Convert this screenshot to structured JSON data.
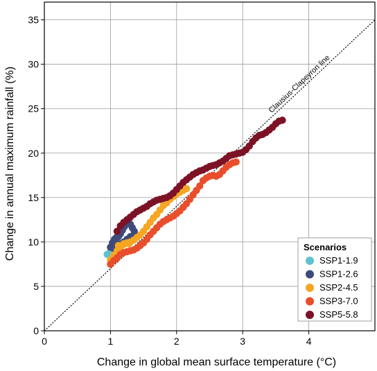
{
  "chart_data": {
    "type": "scatter",
    "xlabel": "Change in global mean surface temperature (°C)",
    "ylabel": "Change in annual maximum rainfall (%)",
    "xlim": [
      0,
      5
    ],
    "ylim": [
      0,
      37
    ],
    "xticks": [
      0,
      1,
      2,
      3,
      4
    ],
    "yticks": [
      0,
      5,
      10,
      15,
      20,
      25,
      30,
      35
    ],
    "grid": true,
    "legend_title": "Scenarios",
    "legend_position": "bottom-right",
    "reference_line": {
      "label": "Clausius-Clapeyron line",
      "x": [
        0,
        5
      ],
      "y": [
        0,
        35
      ]
    },
    "series": [
      {
        "name": "SSP1-1.9",
        "color": "#5fc3cf",
        "x": [
          0.95,
          1.0,
          1.03,
          1.06,
          1.09
        ],
        "y": [
          8.6,
          8.9,
          9.2,
          9.1,
          9.4
        ]
      },
      {
        "name": "SSP1-2.6",
        "color": "#3e4a7a",
        "x": [
          1.0,
          1.03,
          1.06,
          1.09,
          1.12,
          1.15,
          1.18,
          1.21,
          1.24,
          1.27,
          1.3,
          1.33,
          1.36,
          1.38,
          1.3,
          1.25,
          1.2,
          1.14,
          1.08,
          1.04
        ],
        "y": [
          9.4,
          9.9,
          10.3,
          10.5,
          10.6,
          10.9,
          11.3,
          11.7,
          12.0,
          12.3,
          12.0,
          11.6,
          11.2,
          10.8,
          10.6,
          10.3,
          10.0,
          9.8,
          9.6,
          9.3
        ]
      },
      {
        "name": "SSP2-4.5",
        "color": "#f5a623",
        "x": [
          1.0,
          1.05,
          1.1,
          1.15,
          1.2,
          1.25,
          1.3,
          1.35,
          1.4,
          1.45,
          1.5,
          1.55,
          1.6,
          1.65,
          1.7,
          1.75,
          1.8,
          1.85,
          1.9,
          1.95,
          2.0,
          2.05,
          2.1,
          2.15,
          1.12,
          1.2,
          1.28
        ],
        "y": [
          8.0,
          8.5,
          9.0,
          9.4,
          9.7,
          9.9,
          10.0,
          10.2,
          10.5,
          10.8,
          11.2,
          11.7,
          12.2,
          12.7,
          13.1,
          13.6,
          14.1,
          14.4,
          14.8,
          15.1,
          15.4,
          15.6,
          15.8,
          16.0,
          9.6,
          9.8,
          9.8
        ]
      },
      {
        "name": "SSP3-7.0",
        "color": "#e94e2c",
        "x": [
          1.0,
          1.05,
          1.1,
          1.15,
          1.2,
          1.25,
          1.3,
          1.35,
          1.4,
          1.45,
          1.5,
          1.55,
          1.6,
          1.65,
          1.7,
          1.75,
          1.8,
          1.85,
          1.9,
          1.95,
          2.0,
          2.05,
          2.1,
          2.15,
          2.2,
          2.25,
          2.3,
          2.35,
          2.4,
          2.45,
          2.5,
          2.55,
          2.6,
          2.65,
          2.7,
          2.75,
          2.8,
          2.85,
          2.9
        ],
        "y": [
          7.5,
          7.9,
          8.2,
          8.6,
          8.8,
          8.9,
          9.0,
          9.1,
          9.3,
          9.6,
          9.9,
          10.3,
          10.8,
          11.2,
          11.6,
          12.0,
          12.3,
          12.5,
          12.7,
          12.9,
          13.2,
          13.5,
          13.9,
          14.3,
          14.8,
          15.3,
          15.8,
          16.3,
          16.9,
          17.2,
          17.4,
          17.5,
          17.4,
          17.6,
          18.0,
          18.4,
          18.7,
          18.9,
          19.0
        ]
      },
      {
        "name": "SSP5-5.8",
        "color": "#7c1226",
        "x": [
          1.1,
          1.15,
          1.2,
          1.25,
          1.3,
          1.35,
          1.4,
          1.45,
          1.5,
          1.55,
          1.6,
          1.65,
          1.7,
          1.75,
          1.8,
          1.85,
          1.9,
          1.95,
          2.0,
          2.05,
          2.1,
          2.15,
          2.2,
          2.25,
          2.3,
          2.35,
          2.4,
          2.45,
          2.5,
          2.55,
          2.6,
          2.65,
          2.7,
          2.75,
          2.8,
          2.85,
          2.9,
          2.95,
          3.0,
          3.05,
          3.1,
          3.15,
          3.2,
          3.25,
          3.3,
          3.35,
          3.4,
          3.45,
          3.5,
          3.55,
          3.6
        ],
        "y": [
          11.2,
          11.8,
          12.2,
          12.5,
          12.8,
          13.1,
          13.4,
          13.6,
          13.8,
          14.0,
          14.3,
          14.5,
          14.7,
          14.8,
          14.9,
          15.0,
          15.2,
          15.5,
          15.9,
          16.3,
          16.7,
          17.0,
          17.3,
          17.6,
          17.8,
          18.0,
          18.1,
          18.3,
          18.5,
          18.6,
          18.7,
          18.9,
          19.1,
          19.4,
          19.7,
          19.8,
          19.9,
          20.0,
          20.1,
          20.4,
          20.8,
          21.3,
          21.7,
          22.0,
          22.1,
          22.3,
          22.6,
          22.9,
          23.3,
          23.6,
          23.7
        ]
      }
    ]
  }
}
